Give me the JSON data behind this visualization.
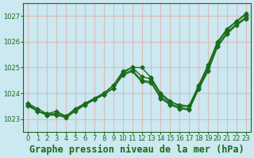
{
  "background_color": "#cce8f0",
  "grid_color": "#ddbbbb",
  "line_color": "#1a6b1a",
  "title": "Graphe pression niveau de la mer (hPa)",
  "xlim": [
    -0.5,
    23.5
  ],
  "ylim": [
    1022.5,
    1027.5
  ],
  "yticks": [
    1023,
    1024,
    1025,
    1026,
    1027
  ],
  "xticks": [
    0,
    1,
    2,
    3,
    4,
    5,
    6,
    7,
    8,
    9,
    10,
    11,
    12,
    13,
    14,
    15,
    16,
    17,
    18,
    19,
    20,
    21,
    22,
    23
  ],
  "series": [
    [
      1023.6,
      1023.4,
      1023.2,
      1023.3,
      1023.1,
      1023.4,
      1023.6,
      1023.8,
      1024.0,
      1024.3,
      1024.8,
      1025.0,
      1025.0,
      1024.6,
      1024.0,
      1023.7,
      1023.5,
      1023.5,
      1024.3,
      1025.1,
      1026.0,
      1026.5,
      1026.8,
      1027.1
    ],
    [
      1023.6,
      1023.3,
      1023.2,
      1023.2,
      1023.1,
      1023.4,
      1023.6,
      1023.8,
      1024.0,
      1024.3,
      1024.85,
      1025.0,
      1024.65,
      1024.55,
      1023.95,
      1023.65,
      1023.55,
      1023.5,
      1024.25,
      1025.0,
      1025.95,
      1026.45,
      1026.8,
      1027.05
    ],
    [
      1023.55,
      1023.3,
      1023.15,
      1023.2,
      1023.1,
      1023.35,
      1023.55,
      1023.75,
      1023.95,
      1024.2,
      1024.75,
      1024.9,
      1024.5,
      1024.45,
      1023.85,
      1023.6,
      1023.45,
      1023.4,
      1024.2,
      1024.9,
      1025.85,
      1026.35,
      1026.7,
      1026.95
    ],
    [
      1023.5,
      1023.3,
      1023.15,
      1023.15,
      1023.05,
      1023.3,
      1023.55,
      1023.75,
      1023.95,
      1024.2,
      1024.7,
      1024.85,
      1024.45,
      1024.4,
      1023.8,
      1023.55,
      1023.4,
      1023.35,
      1024.15,
      1024.85,
      1025.8,
      1026.3,
      1026.65,
      1026.9
    ]
  ],
  "marker": "D",
  "marker_size": 2.5,
  "line_width": 1.0,
  "title_fontsize": 8.5,
  "tick_fontsize": 6.0,
  "fig_width": 3.2,
  "fig_height": 2.0,
  "dpi": 100
}
